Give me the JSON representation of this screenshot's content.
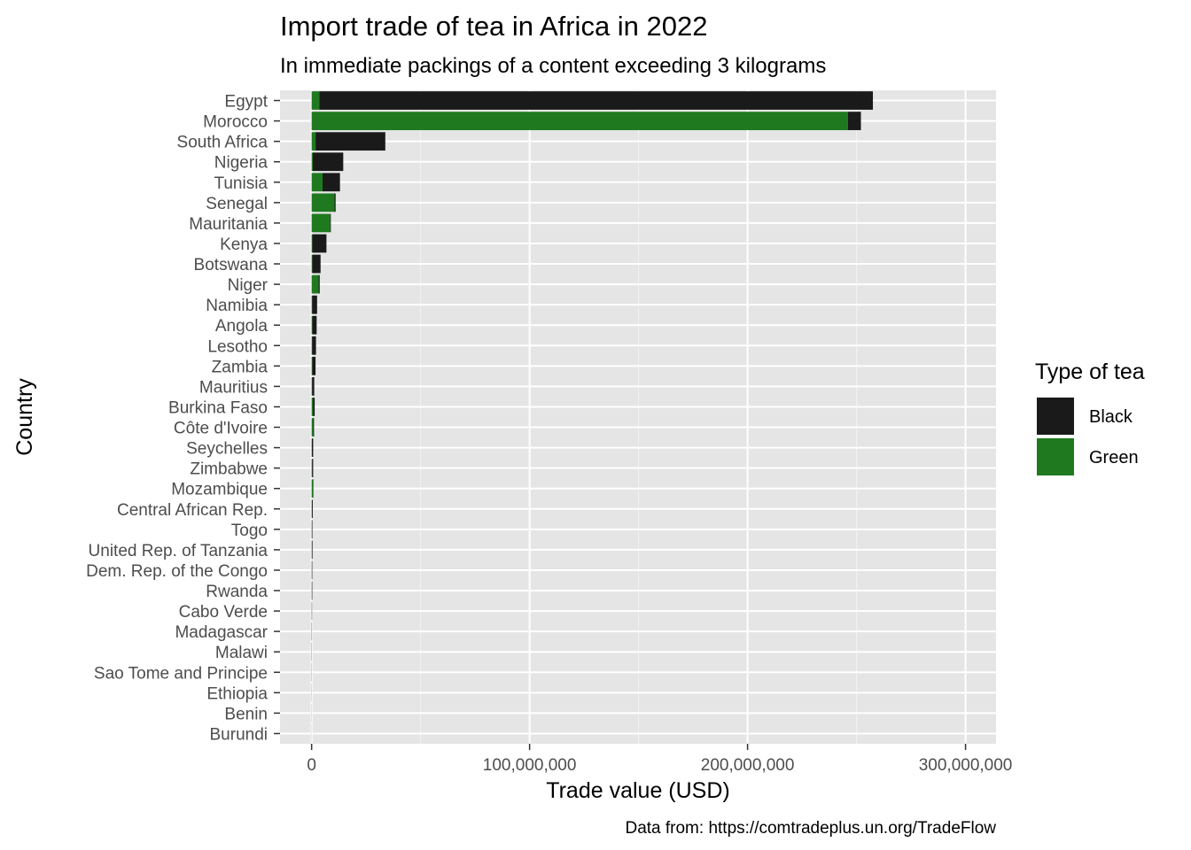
{
  "chart_data": {
    "type": "bar",
    "orientation": "horizontal",
    "stacked": true,
    "title": "Import trade of tea in Africa in 2022",
    "subtitle": "In immediate packings of a content exceeding 3 kilograms",
    "xlabel": "Trade value (USD)",
    "ylabel": "Country",
    "caption": "Data from: https://comtradeplus.un.org/TradeFlow",
    "xlim": [
      -14500000,
      314000000
    ],
    "xticks": [
      0,
      100000000,
      200000000,
      300000000
    ],
    "xtick_labels": [
      "0",
      "100,000,000",
      "200,000,000",
      "300,000,000"
    ],
    "grid": true,
    "legend": {
      "title": "Type of tea",
      "position": "right"
    },
    "categories": [
      "Egypt",
      "Morocco",
      "South Africa",
      "Nigeria",
      "Tunisia",
      "Senegal",
      "Mauritania",
      "Kenya",
      "Botswana",
      "Niger",
      "Namibia",
      "Angola",
      "Lesotho",
      "Zambia",
      "Mauritius",
      "Burkina Faso",
      "Côte d'Ivoire",
      "Seychelles",
      "Zimbabwe",
      "Mozambique",
      "Central African Rep.",
      "Togo",
      "United Rep. of Tanzania",
      "Dem. Rep. of the Congo",
      "Rwanda",
      "Cabo Verde",
      "Madagascar",
      "Malawi",
      "Sao Tome and Principe",
      "Ethiopia",
      "Benin",
      "Burundi"
    ],
    "series": [
      {
        "name": "Black",
        "color": "#1a1a1a",
        "values": [
          254000000,
          6000000,
          32000000,
          14000000,
          8000000,
          500000,
          300000,
          6500000,
          3800000,
          500000,
          2300000,
          2000000,
          1800000,
          1500000,
          1000000,
          800000,
          400000,
          600000,
          500000,
          200000,
          400000,
          200000,
          300000,
          200000,
          200000,
          100000,
          100000,
          80000,
          60000,
          50000,
          40000,
          30000
        ]
      },
      {
        "name": "Green",
        "color": "#1f7a1f",
        "values": [
          3500000,
          246000000,
          1800000,
          500000,
          5000000,
          10500000,
          8500000,
          300000,
          300000,
          3200000,
          200000,
          300000,
          200000,
          300000,
          200000,
          600000,
          700000,
          100000,
          200000,
          600000,
          100000,
          200000,
          100000,
          100000,
          100000,
          100000,
          50000,
          30000,
          30000,
          20000,
          20000,
          10000
        ]
      }
    ]
  }
}
